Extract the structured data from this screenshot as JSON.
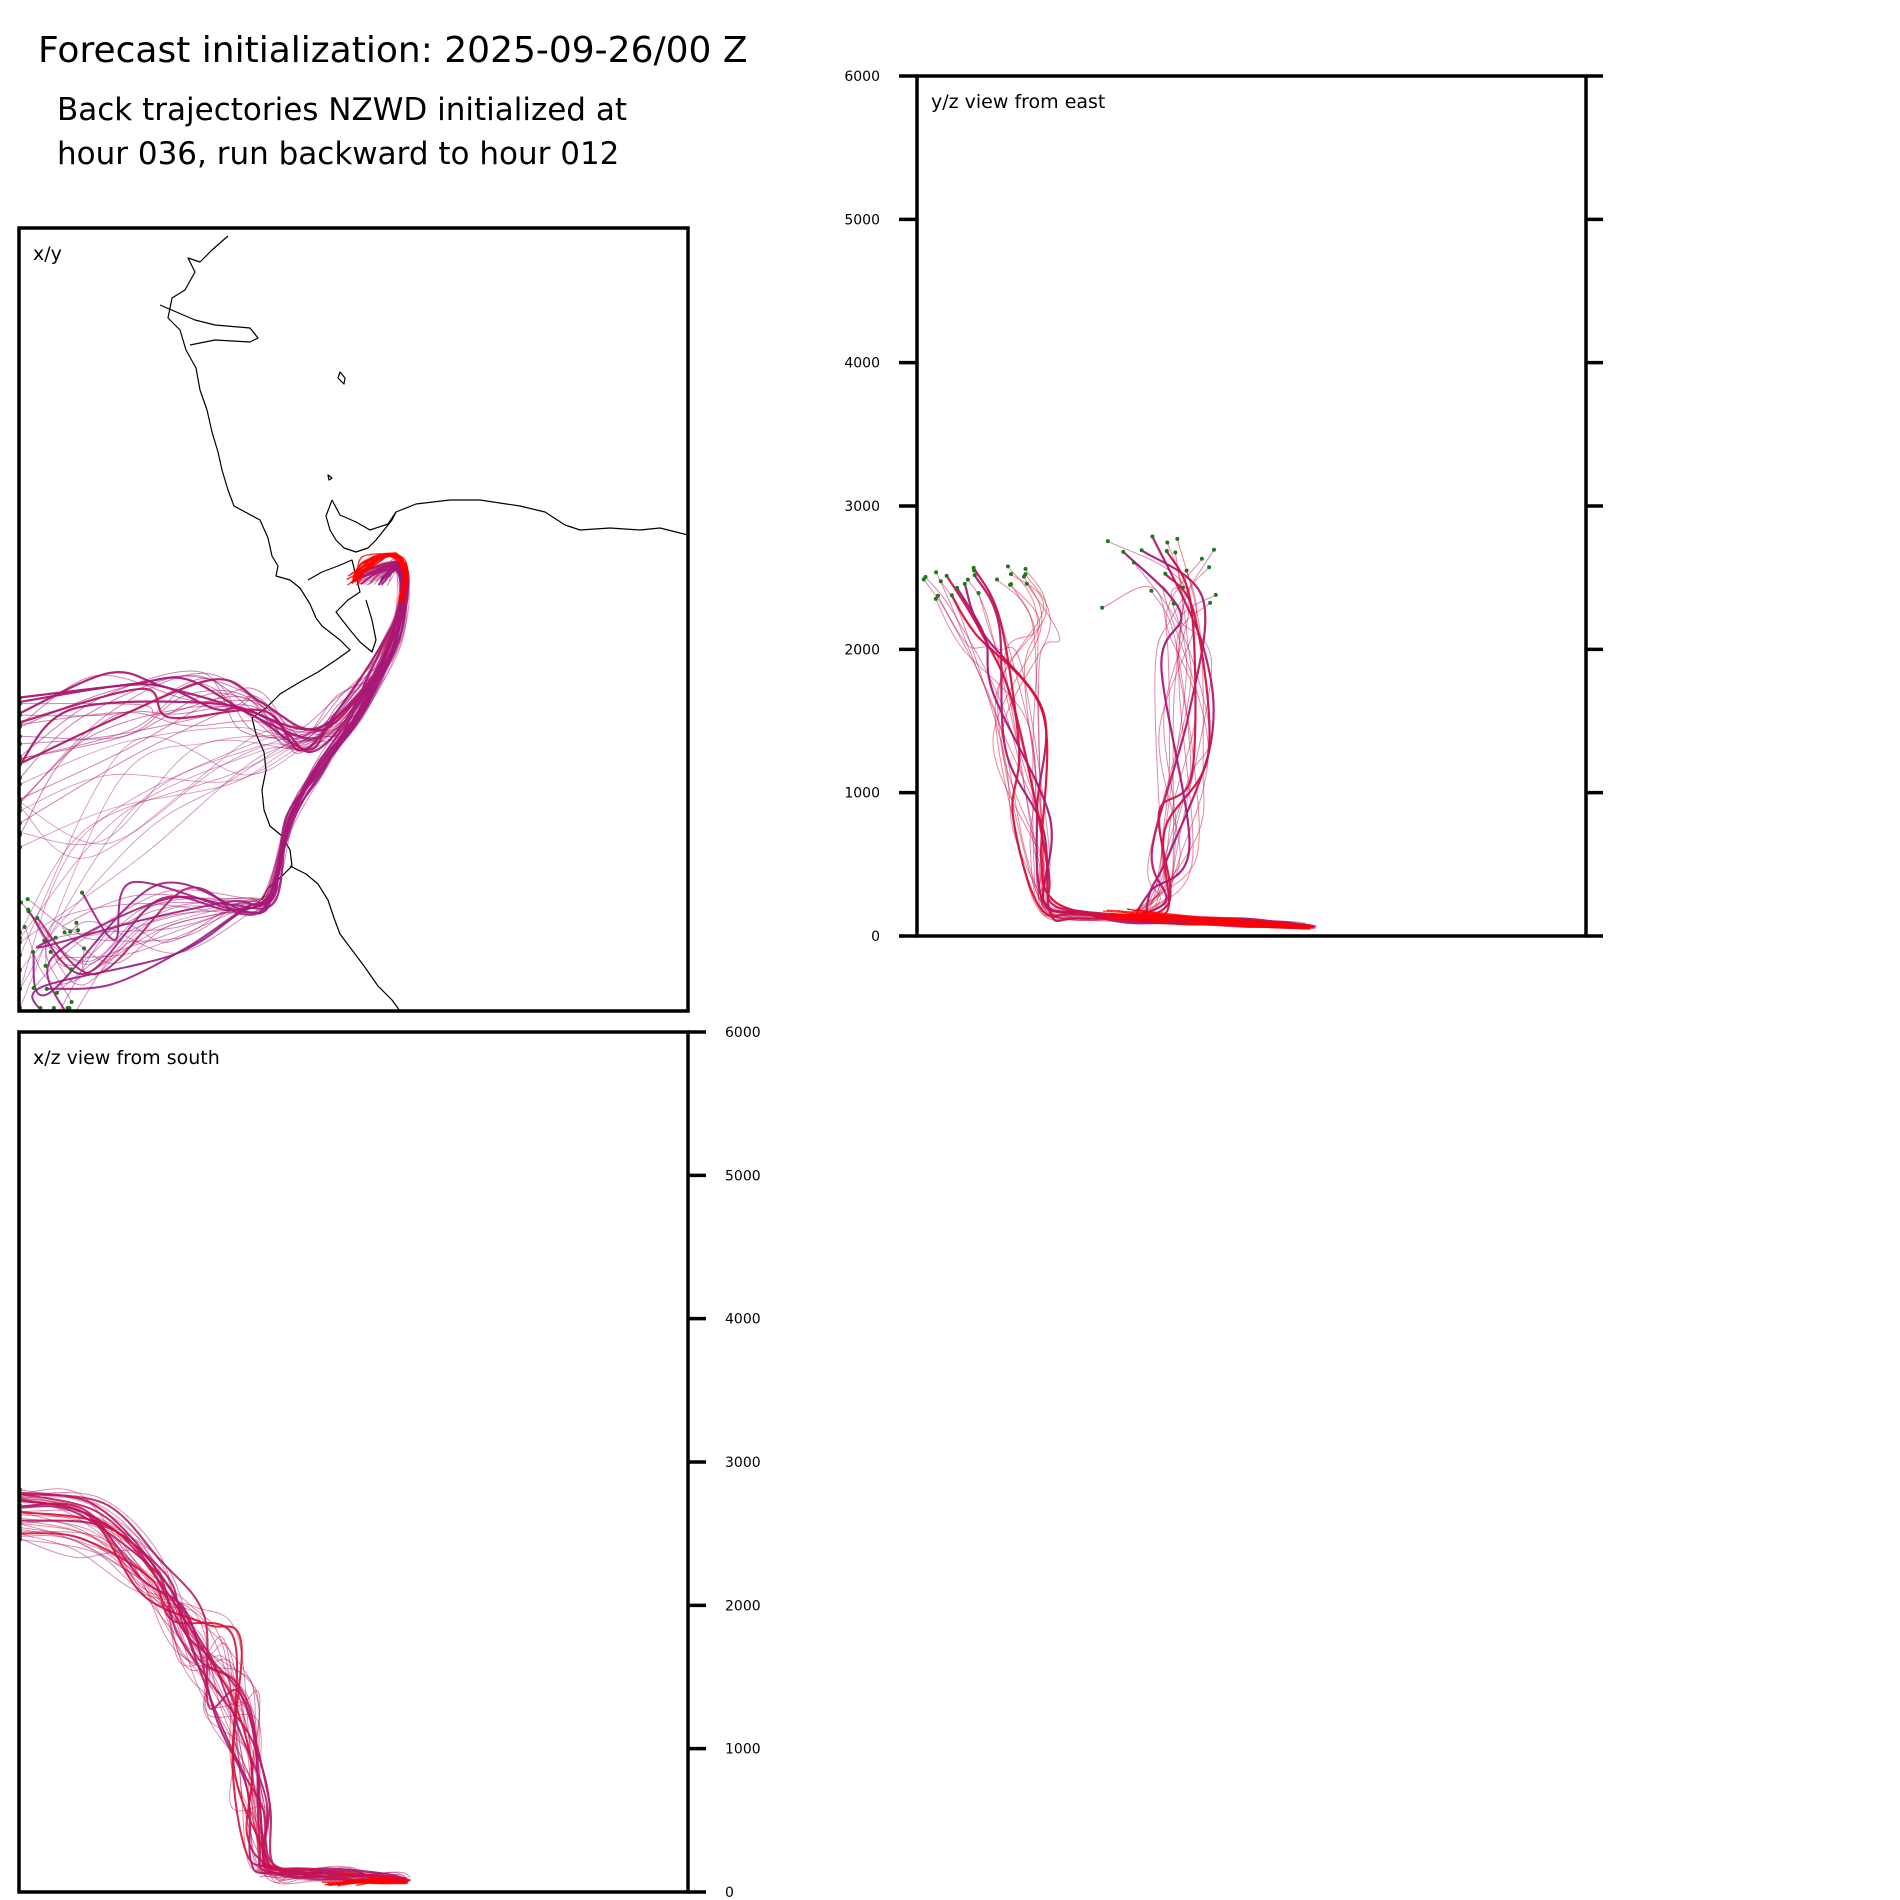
{
  "header": {
    "title": "Forecast initialization: 2025-09-26/00 Z",
    "subtitle_line1": "Back trajectories NZWD initialized at",
    "subtitle_line2": "hour 036, run backward to hour 012"
  },
  "colors": {
    "trajectory_start": "#ff0000",
    "trajectory_mid": "#c2185b",
    "trajectory_end": "#8e1a8e",
    "endpoint_marker": "#1b7a1b",
    "frame": "#000000"
  },
  "chart_data": [
    {
      "type": "line",
      "panel": "xy",
      "label": "x/y",
      "title": "x/y",
      "description_units": "map view, relative position",
      "coastline": true
    },
    {
      "type": "line",
      "panel": "yz",
      "label": "y/z view from east",
      "title": "y/z view from east",
      "ylim": [
        0,
        6000
      ],
      "yticks": [
        0,
        1000,
        2000,
        3000,
        4000,
        5000,
        6000
      ],
      "ytick_labels": [
        "0",
        "1000",
        "2000",
        "3000",
        "4000",
        "5000",
        "6000"
      ],
      "yaxis_side": "left"
    },
    {
      "type": "line",
      "panel": "xz",
      "label": "x/z view from south",
      "title": "x/z view from south",
      "ylim": [
        0,
        6000
      ],
      "yticks": [
        0,
        1000,
        2000,
        3000,
        4000,
        5000,
        6000
      ],
      "ytick_labels": [
        "0",
        "1000",
        "2000",
        "3000",
        "4000",
        "5000",
        "6000"
      ],
      "yaxis_side": "right"
    }
  ]
}
